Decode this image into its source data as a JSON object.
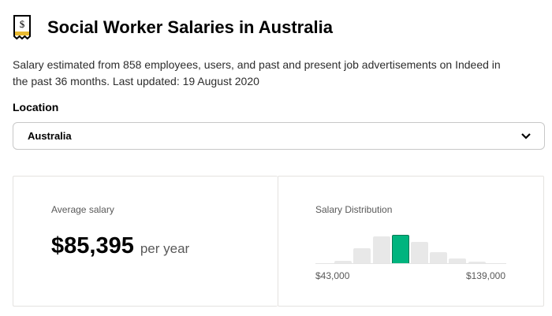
{
  "header": {
    "title": "Social Worker Salaries in Australia",
    "icon": "salary-receipt-icon"
  },
  "description": "Salary estimated from 858 employees, users, and past and present job advertisements on Indeed in the past 36 months. Last updated: 19 August 2020",
  "location": {
    "label": "Location",
    "selected": "Australia"
  },
  "average": {
    "label": "Average salary",
    "amount": "$85,395",
    "period": "per year"
  },
  "distribution": {
    "label": "Salary Distribution",
    "min_label": "$43,000",
    "max_label": "$139,000"
  },
  "chart_data": {
    "type": "bar",
    "title": "Salary Distribution",
    "x_range": [
      "$43,000",
      "$139,000"
    ],
    "values": [
      1,
      4,
      19,
      34,
      36,
      27,
      15,
      7,
      3,
      1
    ],
    "highlight_index": 4,
    "colors": {
      "bar": "#e8e8e8",
      "highlight": "#00b47e"
    }
  }
}
